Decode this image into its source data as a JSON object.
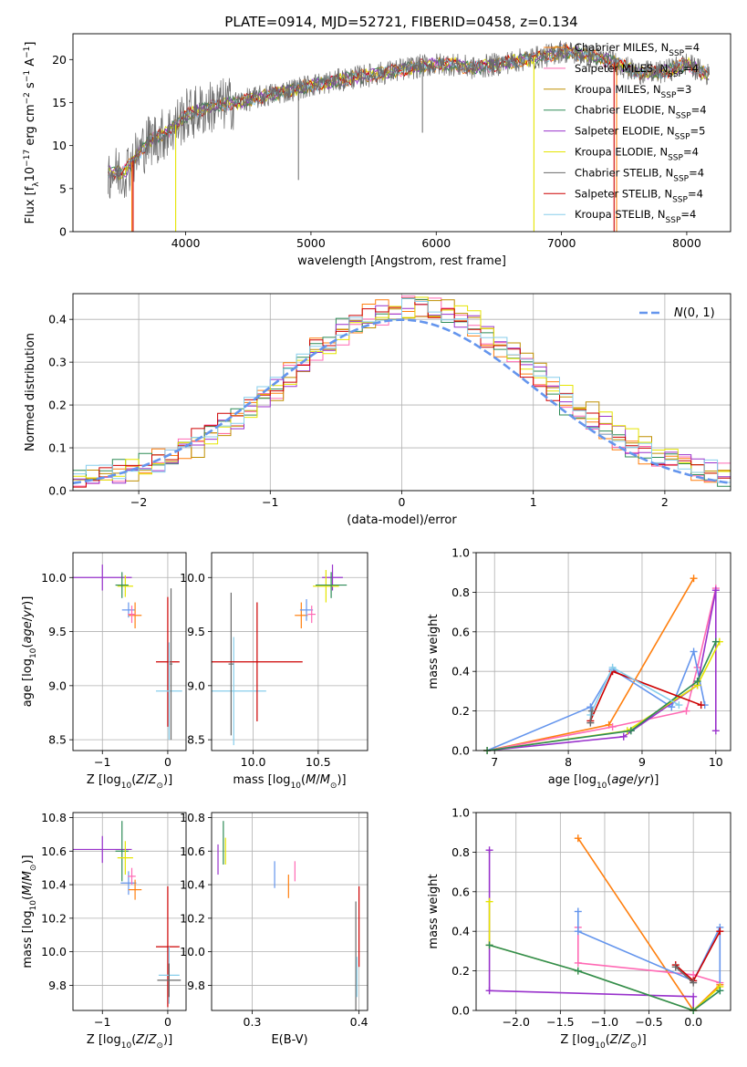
{
  "figure_title": "PLATE=0914, MJD=52721, FIBERID=0458, z=0.134",
  "colors": {
    "chabrier_miles": "#ff7f0e",
    "salpeter_miles": "#ff69b4",
    "kroupa_miles": "#bf8f00",
    "chabrier_elodie": "#2e8b57",
    "salpeter_elodie": "#9932cc",
    "kroupa_elodie": "#e5e500",
    "chabrier_stelib": "#696969",
    "salpeter_stelib": "#cd0000",
    "kroupa_stelib": "#87ceeb",
    "normal_curve": "#6495ed"
  },
  "chart_data": [
    {
      "id": "spectrum",
      "type": "line",
      "xlabel": "wavelength [Angstrom, rest frame]",
      "ylabel": "Flux [f_λ10^-17 erg cm^-2 s^-1 A^-1]",
      "xlim": [
        3100,
        8350
      ],
      "ylim": [
        0,
        23
      ],
      "xticks": [
        4000,
        5000,
        6000,
        7000,
        8000
      ],
      "yticks": [
        0,
        5,
        10,
        15,
        20
      ],
      "grid": false,
      "legend_position": "right",
      "legend": [
        {
          "label": "Chabrier MILES, N_SSP=4",
          "color_key": "chabrier_miles"
        },
        {
          "label": "Salpeter MILES, N_SSP=4",
          "color_key": "salpeter_miles"
        },
        {
          "label": "Kroupa MILES, N_SSP=3",
          "color_key": "kroupa_miles"
        },
        {
          "label": "Chabrier ELODIE, N_SSP=4",
          "color_key": "chabrier_elodie"
        },
        {
          "label": "Salpeter ELODIE, N_SSP=5",
          "color_key": "salpeter_elodie"
        },
        {
          "label": "Kroupa ELODIE, N_SSP=4",
          "color_key": "kroupa_elodie"
        },
        {
          "label": "Chabrier STELIB, N_SSP=4",
          "color_key": "chabrier_stelib"
        },
        {
          "label": "Salpeter STELIB, N_SSP=4",
          "color_key": "salpeter_stelib"
        },
        {
          "label": "Kroupa STELIB, N_SSP=4",
          "color_key": "kroupa_stelib"
        }
      ],
      "continuum": {
        "x": [
          3350,
          3500,
          3700,
          3850,
          4000,
          4200,
          4400,
          4700,
          5000,
          5300,
          5600,
          5900,
          6100,
          6300,
          6500,
          6700,
          6900,
          7000,
          7200,
          7400,
          7600,
          7800,
          8000,
          8200
        ],
        "y": [
          7.0,
          6.8,
          10.5,
          11.5,
          13.5,
          14.5,
          15.0,
          16.0,
          17.0,
          17.8,
          18.5,
          19.3,
          19.5,
          19.0,
          19.5,
          20.0,
          20.5,
          21.0,
          20.5,
          19.8,
          18.5,
          18.5,
          19.5,
          18.0
        ]
      }
    },
    {
      "id": "residuals",
      "type": "line",
      "xlabel": "(data-model)/error",
      "ylabel": "Normed distribution",
      "xlim": [
        -2.5,
        2.5
      ],
      "ylim": [
        0,
        0.46
      ],
      "xticks": [
        -2,
        -1,
        0,
        1,
        2
      ],
      "yticks": [
        0.0,
        0.1,
        0.2,
        0.3,
        0.4
      ],
      "grid": true,
      "legend_position": "top-right",
      "legend": [
        {
          "label": "N(0,1)",
          "color_key": "normal_curve"
        }
      ],
      "normal_curve": {
        "mean": 0,
        "sigma": 1
      }
    },
    {
      "id": "age_vs_Z",
      "type": "scatter",
      "xlabel": "Z [log10(Z/Z⊙)]",
      "ylabel": "age [log10(age/yr)]",
      "xlim": [
        -1.45,
        0.28
      ],
      "ylim": [
        8.4,
        10.23
      ],
      "xticks": [
        -1,
        0
      ],
      "yticks": [
        8.5,
        9.0,
        9.5,
        10.0
      ],
      "grid": true,
      "points": [
        {
          "color_key": "salpeter_elodie",
          "x": -1.0,
          "y": 10.0,
          "xerr": 0.45,
          "yerr": 0.12
        },
        {
          "color_key": "kroupa_elodie",
          "x": -0.65,
          "y": 9.92,
          "xerr": 0.12,
          "yerr": 0.1
        },
        {
          "color_key": "chabrier_elodie",
          "x": -0.7,
          "y": 9.93,
          "xerr": 0.1,
          "yerr": 0.12
        },
        {
          "color_key": "normal_curve",
          "x": -0.6,
          "y": 9.7,
          "xerr": 0.1,
          "yerr": 0.07
        },
        {
          "color_key": "chabrier_miles",
          "x": -0.5,
          "y": 9.65,
          "xerr": 0.1,
          "yerr": 0.12
        },
        {
          "color_key": "salpeter_miles",
          "x": -0.55,
          "y": 9.66,
          "xerr": 0.06,
          "yerr": 0.08
        },
        {
          "color_key": "salpeter_stelib",
          "x": 0.0,
          "y": 9.22,
          "xerr": 0.18,
          "yerr": 0.6
        },
        {
          "color_key": "kroupa_stelib",
          "x": 0.02,
          "y": 8.95,
          "xerr": 0.2,
          "yerr": 0.45
        },
        {
          "color_key": "chabrier_stelib",
          "x": 0.05,
          "y": 9.2,
          "xerr": 0.02,
          "yerr": 0.7
        }
      ]
    },
    {
      "id": "age_vs_mass",
      "type": "scatter",
      "xlabel": "mass [log10(M/M⊙)]",
      "ylabel": "",
      "xlim": [
        9.68,
        10.88
      ],
      "ylim": [
        8.4,
        10.23
      ],
      "xticks": [
        10.0,
        10.5
      ],
      "yticks": [
        8.5,
        9.0,
        9.5,
        10.0
      ],
      "grid": true,
      "points": [
        {
          "color_key": "kroupa_stelib",
          "x": 9.85,
          "y": 8.95,
          "xerr": 0.25,
          "yerr": 0.5
        },
        {
          "color_key": "chabrier_stelib",
          "x": 9.83,
          "y": 9.2,
          "xerr": 0.02,
          "yerr": 0.66
        },
        {
          "color_key": "salpeter_stelib",
          "x": 10.03,
          "y": 9.22,
          "xerr": 0.35,
          "yerr": 0.55
        },
        {
          "color_key": "chabrier_miles",
          "x": 10.37,
          "y": 9.65,
          "xerr": 0.05,
          "yerr": 0.12
        },
        {
          "color_key": "normal_curve",
          "x": 10.41,
          "y": 9.7,
          "xerr": 0.05,
          "yerr": 0.1
        },
        {
          "color_key": "salpeter_miles",
          "x": 10.45,
          "y": 9.66,
          "xerr": 0.03,
          "yerr": 0.08
        },
        {
          "color_key": "salpeter_elodie",
          "x": 10.61,
          "y": 10.0,
          "xerr": 0.08,
          "yerr": 0.12
        },
        {
          "color_key": "kroupa_elodie",
          "x": 10.56,
          "y": 9.92,
          "xerr": 0.1,
          "yerr": 0.15
        },
        {
          "color_key": "chabrier_elodie",
          "x": 10.6,
          "y": 9.93,
          "xerr": 0.12,
          "yerr": 0.12
        }
      ]
    },
    {
      "id": "weight_vs_age",
      "type": "line",
      "xlabel": "age [log10(age/yr)]",
      "ylabel": "mass weight",
      "xlim": [
        6.75,
        10.2
      ],
      "ylim": [
        0,
        1.0
      ],
      "xticks": [
        7,
        8,
        9,
        10
      ],
      "yticks": [
        0.0,
        0.2,
        0.4,
        0.6,
        0.8,
        1.0
      ],
      "grid": true,
      "series": [
        {
          "color_key": "chabrier_miles",
          "x": [
            6.9,
            8.55,
            9.7
          ],
          "y": [
            0.0,
            0.13,
            0.87
          ]
        },
        {
          "color_key": "salpeter_miles",
          "x": [
            6.9,
            8.6,
            9.6,
            9.75,
            10.0
          ],
          "y": [
            0.0,
            0.12,
            0.2,
            0.42,
            0.82
          ]
        },
        {
          "color_key": "normal_curve",
          "x": [
            6.9,
            8.3,
            8.6,
            9.4,
            9.7,
            9.85
          ],
          "y": [
            0.0,
            0.22,
            0.41,
            0.22,
            0.5,
            0.23
          ]
        },
        {
          "color_key": "salpeter_elodie",
          "x": [
            6.9,
            8.75,
            9.75,
            10.0,
            10.0
          ],
          "y": [
            0.0,
            0.07,
            0.33,
            0.81,
            0.1
          ]
        },
        {
          "color_key": "kroupa_elodie",
          "x": [
            6.9,
            8.8,
            9.75,
            10.05
          ],
          "y": [
            0.0,
            0.1,
            0.33,
            0.55
          ]
        },
        {
          "color_key": "chabrier_elodie",
          "x": [
            6.9,
            8.85,
            9.75,
            10.0
          ],
          "y": [
            0.0,
            0.1,
            0.35,
            0.55
          ]
        },
        {
          "color_key": "salpeter_stelib",
          "x": [
            8.3,
            8.6,
            9.8
          ],
          "y": [
            0.15,
            0.4,
            0.23
          ]
        },
        {
          "color_key": "kroupa_stelib",
          "x": [
            8.3,
            8.6,
            9.5
          ],
          "y": [
            0.18,
            0.42,
            0.23
          ]
        },
        {
          "color_key": "chabrier_stelib",
          "x": [
            8.3,
            8.32
          ],
          "y": [
            0.14,
            0.2
          ]
        }
      ]
    },
    {
      "id": "mass_vs_Z",
      "type": "scatter",
      "xlabel": "Z [log10(Z/Z⊙)]",
      "ylabel": "mass [log10(M/M⊙)]",
      "xlim": [
        -1.45,
        0.28
      ],
      "ylim": [
        9.65,
        10.83
      ],
      "xticks": [
        -1,
        0
      ],
      "yticks": [
        9.8,
        10.0,
        10.2,
        10.4,
        10.6,
        10.8
      ],
      "grid": true,
      "points": [
        {
          "color_key": "salpeter_elodie",
          "x": -1.0,
          "y": 10.61,
          "xerr": 0.45,
          "yerr": 0.08
        },
        {
          "color_key": "chabrier_elodie",
          "x": -0.7,
          "y": 10.6,
          "xerr": 0.1,
          "yerr": 0.18
        },
        {
          "color_key": "kroupa_elodie",
          "x": -0.65,
          "y": 10.56,
          "xerr": 0.12,
          "yerr": 0.1
        },
        {
          "color_key": "normal_curve",
          "x": -0.6,
          "y": 10.41,
          "xerr": 0.12,
          "yerr": 0.07
        },
        {
          "color_key": "salpeter_miles",
          "x": -0.55,
          "y": 10.45,
          "xerr": 0.06,
          "yerr": 0.05
        },
        {
          "color_key": "chabrier_miles",
          "x": -0.5,
          "y": 10.37,
          "xerr": 0.1,
          "yerr": 0.06
        },
        {
          "color_key": "salpeter_stelib",
          "x": 0.0,
          "y": 10.03,
          "xerr": 0.18,
          "yerr": 0.36
        },
        {
          "color_key": "kroupa_stelib",
          "x": 0.02,
          "y": 9.86,
          "xerr": 0.16,
          "yerr": 0.17
        },
        {
          "color_key": "chabrier_stelib",
          "x": 0.02,
          "y": 9.83,
          "xerr": 0.18,
          "yerr": 0.1
        }
      ]
    },
    {
      "id": "mass_vs_ebv",
      "type": "scatter",
      "xlabel": "E(B-V)",
      "ylabel": "",
      "xlim": [
        0.262,
        0.408
      ],
      "ylim": [
        9.65,
        10.83
      ],
      "xticks": [
        0.3,
        0.4
      ],
      "yticks": [
        9.8,
        10.0,
        10.2,
        10.4,
        10.6,
        10.8
      ],
      "grid": true,
      "points": [
        {
          "color_key": "salpeter_elodie",
          "x": 0.268,
          "y": 10.55,
          "xerr": 0.0,
          "yerr": 0.09
        },
        {
          "color_key": "chabrier_elodie",
          "x": 0.273,
          "y": 10.65,
          "xerr": 0.0,
          "yerr": 0.13
        },
        {
          "color_key": "kroupa_elodie",
          "x": 0.275,
          "y": 10.6,
          "xerr": 0.0,
          "yerr": 0.08
        },
        {
          "color_key": "normal_curve",
          "x": 0.321,
          "y": 10.46,
          "xerr": 0.0,
          "yerr": 0.08
        },
        {
          "color_key": "chabrier_miles",
          "x": 0.334,
          "y": 10.39,
          "xerr": 0.0,
          "yerr": 0.07
        },
        {
          "color_key": "salpeter_miles",
          "x": 0.34,
          "y": 10.48,
          "xerr": 0.0,
          "yerr": 0.06
        },
        {
          "color_key": "chabrier_stelib",
          "x": 0.397,
          "y": 9.95,
          "xerr": 0.0,
          "yerr": 0.35
        },
        {
          "color_key": "kroupa_stelib",
          "x": 0.398,
          "y": 9.85,
          "xerr": 0.0,
          "yerr": 0.12
        },
        {
          "color_key": "salpeter_stelib",
          "x": 0.4,
          "y": 10.15,
          "xerr": 0.0,
          "yerr": 0.24
        }
      ]
    },
    {
      "id": "weight_vs_Z",
      "type": "line",
      "xlabel": "Z [log10(Z/Z⊙)]",
      "ylabel": "mass weight",
      "xlim": [
        -2.45,
        0.42
      ],
      "ylim": [
        0,
        1.0
      ],
      "xticks": [
        -2.0,
        -1.5,
        -1.0,
        -0.5,
        0.0
      ],
      "yticks": [
        0.0,
        0.2,
        0.4,
        0.6,
        0.8,
        1.0
      ],
      "grid": true,
      "series": [
        {
          "color_key": "chabrier_miles",
          "x": [
            -1.3,
            0.0,
            0.3
          ],
          "y": [
            0.87,
            0.0,
            0.13
          ]
        },
        {
          "color_key": "salpeter_miles",
          "x": [
            -1.3,
            -1.3,
            0.0,
            0.3
          ],
          "y": [
            0.42,
            0.24,
            0.18,
            0.14
          ]
        },
        {
          "color_key": "normal_curve",
          "x": [
            -1.3,
            -1.3,
            0.0,
            0.3,
            0.3
          ],
          "y": [
            0.5,
            0.4,
            0.15,
            0.42,
            0.1
          ]
        },
        {
          "color_key": "salpeter_elodie",
          "x": [
            -2.3,
            -2.3,
            0.0,
            0.0
          ],
          "y": [
            0.81,
            0.1,
            0.07,
            0.0
          ]
        },
        {
          "color_key": "kroupa_elodie",
          "x": [
            -2.3,
            -2.3,
            -1.3,
            0.0,
            0.3
          ],
          "y": [
            0.55,
            0.33,
            0.2,
            0.0,
            0.12
          ]
        },
        {
          "color_key": "chabrier_elodie",
          "x": [
            -2.3,
            -1.3,
            0.0,
            0.3
          ],
          "y": [
            0.33,
            0.2,
            0.0,
            0.1
          ]
        },
        {
          "color_key": "salpeter_stelib",
          "x": [
            -0.2,
            0.0,
            0.3
          ],
          "y": [
            0.23,
            0.15,
            0.4
          ]
        },
        {
          "color_key": "chabrier_stelib",
          "x": [
            -0.2,
            0.0
          ],
          "y": [
            0.22,
            0.14
          ]
        }
      ]
    }
  ]
}
